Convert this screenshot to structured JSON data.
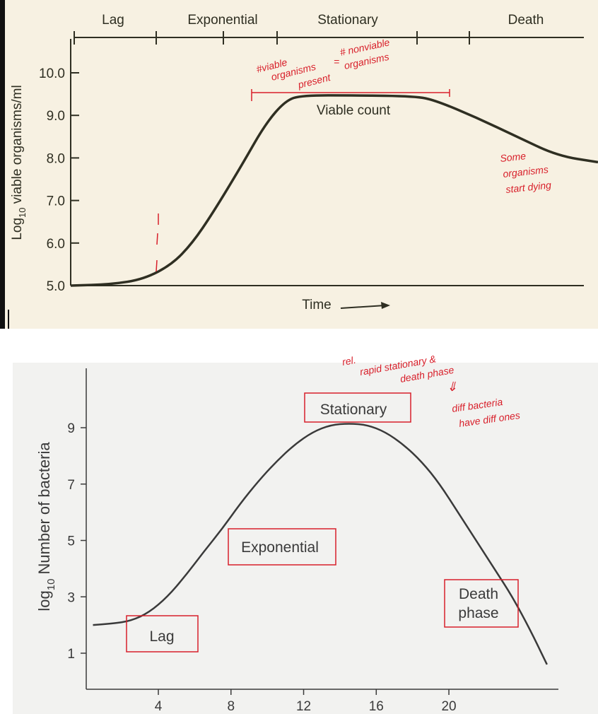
{
  "chart_data": [
    {
      "type": "line",
      "title": "",
      "xlabel": "Time",
      "ylabel_main": "Log",
      "ylabel_sub": "10",
      "ylabel_rest": " viable organisms/ml",
      "ylim": [
        5.0,
        10.5
      ],
      "yticks": [
        "5.0",
        "6.0",
        "7.0",
        "8.0",
        "9.0",
        "10.0"
      ],
      "phases": [
        "Lag",
        "Exponential",
        "Stationary",
        "Death"
      ],
      "curve_label": "Viable count",
      "series": [
        {
          "points": [
            [
              0.0,
              5.0
            ],
            [
              0.1,
              5.03
            ],
            [
              0.18,
              5.15
            ],
            [
              0.25,
              5.5
            ],
            [
              0.3,
              6.0
            ],
            [
              0.35,
              6.7
            ],
            [
              0.42,
              7.8
            ],
            [
              0.48,
              8.8
            ],
            [
              0.53,
              9.35
            ],
            [
              0.57,
              9.47
            ],
            [
              0.7,
              9.47
            ],
            [
              0.85,
              9.45
            ],
            [
              0.9,
              9.35
            ],
            [
              1.0,
              8.95
            ],
            [
              1.1,
              8.5
            ],
            [
              1.2,
              8.05
            ],
            [
              1.3,
              7.9
            ]
          ]
        }
      ],
      "annotations": {
        "viable_present": [
          "#viable",
          "organisms",
          "present"
        ],
        "equals": "=",
        "nonviable": [
          "# nonviable",
          "organisms"
        ],
        "some_dying": [
          "Some",
          "organisms",
          "start dying"
        ]
      },
      "colors": {
        "bg": "#f7f1e2",
        "ink": "#2f2f22",
        "pen": "#d81f2a"
      }
    },
    {
      "type": "line",
      "title": "",
      "xlabel": "",
      "ylabel_main": "log",
      "ylabel_sub": "10",
      "ylabel_rest": " Number of bacteria",
      "xlim": [
        0,
        26
      ],
      "ylim": [
        0,
        11
      ],
      "xticks": [
        4,
        8,
        12,
        16,
        20
      ],
      "yticks": [
        1,
        3,
        5,
        7,
        9
      ],
      "phase_boxes": [
        "Lag",
        "Exponential",
        "Stationary",
        "Death",
        "phase"
      ],
      "series": [
        {
          "x": [
            0.4,
            1.5,
            2.5,
            3.5,
            4.5,
            5.5,
            6.5,
            7.5,
            8.5,
            9.5,
            10.5,
            11.5,
            12.5,
            13.5,
            14.5,
            15.5,
            16.5,
            17.5,
            18.5,
            19.5,
            20.5,
            21.5,
            22.5,
            23.5,
            24.5,
            25.4
          ],
          "y": [
            2.0,
            2.05,
            2.15,
            2.45,
            3.0,
            3.75,
            4.6,
            5.4,
            6.3,
            7.1,
            7.8,
            8.4,
            8.85,
            9.1,
            9.15,
            9.1,
            8.85,
            8.4,
            7.8,
            7.0,
            6.0,
            5.0,
            4.0,
            3.0,
            1.8,
            0.6
          ]
        }
      ],
      "annotations": {
        "note_lines": [
          "rel.",
          "rapid stationary &",
          "death phase"
        ],
        "arrow": "⇓",
        "note_lines2": [
          "diff bacteria",
          "have diff ones"
        ]
      },
      "colors": {
        "bg": "#f2f2f0",
        "ink": "#3a3a3a",
        "pen": "#d81f2a"
      }
    }
  ]
}
